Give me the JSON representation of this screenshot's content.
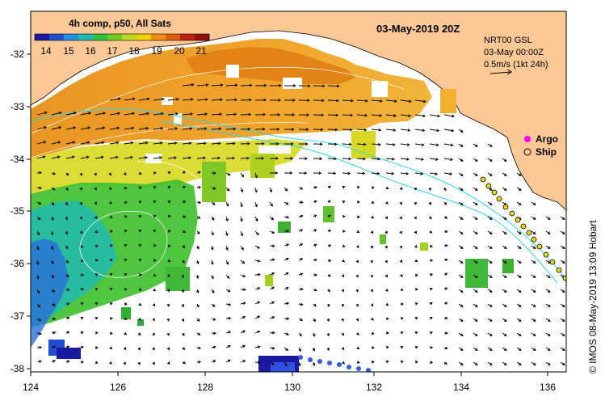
{
  "map": {
    "date_label": "03-May-2019 20Z",
    "colorbar": {
      "title": "4h comp, p50, All Sats",
      "ticks": [
        "14",
        "15",
        "16",
        "17",
        "18",
        "19",
        "20",
        "21"
      ],
      "colors": [
        "#1a1aa0",
        "#1f4fd0",
        "#1f8fe0",
        "#20b8b0",
        "#30c040",
        "#70cc20",
        "#c0d820",
        "#f0d000",
        "#f09010",
        "#e06010",
        "#c02010",
        "#901010"
      ]
    },
    "current_info": {
      "model": "NRT00 GSL",
      "time": "03-May 00:00Z",
      "scale": "0.5m/s (1kt 24h)"
    },
    "legend": {
      "argo": "Argo",
      "ship": "Ship",
      "argo_color": "#ff00ff",
      "ship_color": "#000000"
    },
    "x_ticks": [
      "124",
      "126",
      "128",
      "130",
      "132",
      "134",
      "136"
    ],
    "y_ticks": [
      "-32",
      "-33",
      "-34",
      "-35",
      "-36",
      "-37",
      "-38"
    ],
    "credit": "© IMOS 08-May-2019 13:09 Hobart",
    "land_color": "#fcc896",
    "ocean_color": "#ffffff"
  }
}
